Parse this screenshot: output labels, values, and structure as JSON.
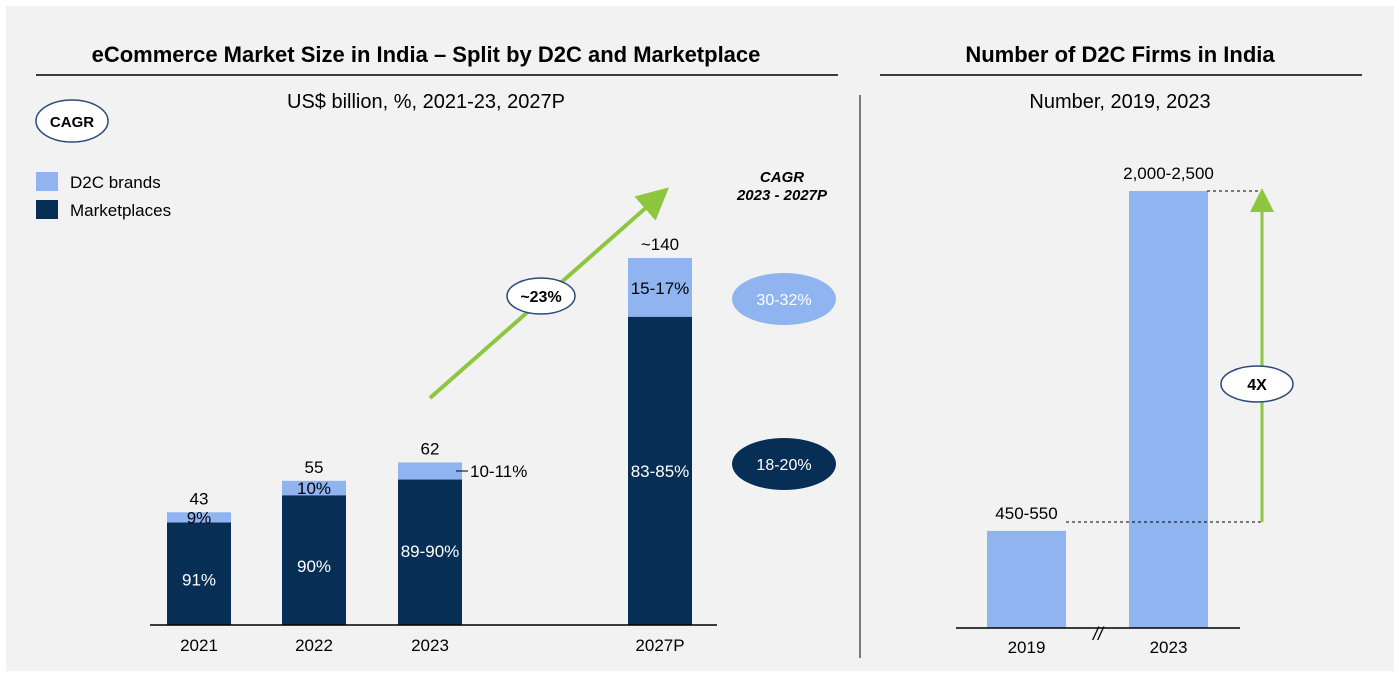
{
  "chart_data": [
    {
      "type": "bar",
      "stacked": true,
      "title": "eCommerce Market Size in India – Split by D2C and Marketplace",
      "subtitle": "US$ billion, %, 2021-23, 2027P",
      "cagr_badge": "CAGR",
      "categories": [
        "2021",
        "2022",
        "2023",
        "2027P"
      ],
      "totals": [
        43,
        55,
        62,
        140
      ],
      "total_labels": [
        "43",
        "55",
        "62",
        "~140"
      ],
      "series": [
        {
          "name": "D2C brands",
          "color": "#8fb4f0",
          "share_values": [
            9,
            10,
            10.5,
            16
          ],
          "share_labels": [
            "9%",
            "10%",
            "10-11%",
            "15-17%"
          ]
        },
        {
          "name": "Marketplaces",
          "color": "#072f55",
          "share_values": [
            91,
            90,
            89.5,
            84
          ],
          "share_labels": [
            "91%",
            "90%",
            "89-90%",
            "83-85%"
          ]
        }
      ],
      "overall_cagr_label": "~23%",
      "cagr_header": [
        "CAGR",
        "2023 - 2027P"
      ],
      "segment_cagr": [
        {
          "series": "D2C brands",
          "label": "30-32%"
        },
        {
          "series": "Marketplaces",
          "label": "18-20%"
        }
      ],
      "ylim": [
        0,
        145
      ],
      "legend": "top-left"
    },
    {
      "type": "bar",
      "title": "Number of D2C Firms in India",
      "subtitle": "Number, 2019, 2023",
      "categories": [
        "2019",
        "2023"
      ],
      "values": [
        500,
        2250
      ],
      "value_labels": [
        "450-550",
        "2,000-2,500"
      ],
      "color": "#8fb4f0",
      "growth_label": "4X",
      "axis_break": "//",
      "ylim": [
        0,
        2400
      ]
    }
  ],
  "colors": {
    "accent_green": "#8dc63f",
    "background": "#f2f2f2"
  }
}
